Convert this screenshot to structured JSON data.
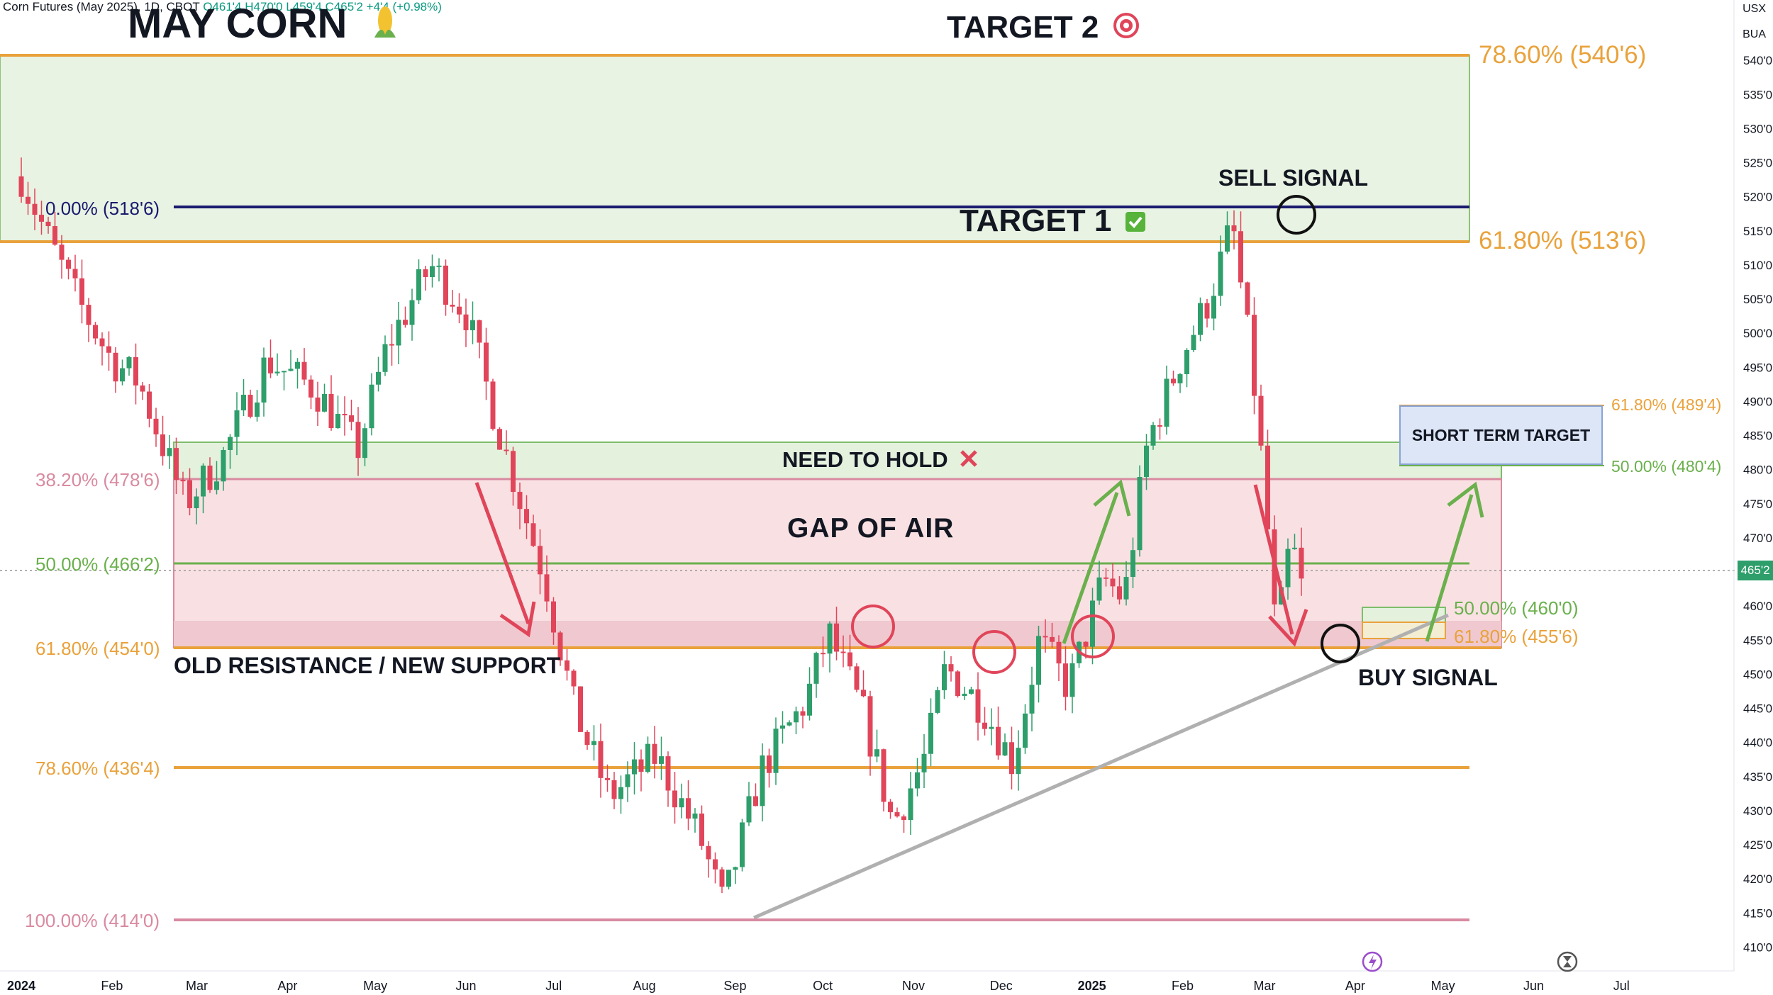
{
  "header": {
    "symbol_text": "Corn Futures (May 2025), 1D, CBOT",
    "open": "O461'4",
    "high": "H470'0",
    "low": "L459'4",
    "close": "C465'2",
    "change": "+4'4 (+0.98%)"
  },
  "title": "MAY CORN",
  "corner": {
    "currency": "USX",
    "unit": "BUA"
  },
  "labels": {
    "target2": "TARGET 2",
    "target1": "TARGET 1",
    "sell_signal": "SELL SIGNAL",
    "buy_signal": "BUY SIGNAL",
    "need_to_hold": "NEED TO HOLD",
    "gap_of_air": "GAP OF AIR",
    "old_resistance": "OLD RESISTANCE / NEW SUPPORT",
    "short_term_target": "SHORT TERM TARGET"
  },
  "fib_levels": {
    "f786_top": "78.60% (540'6)",
    "f0": "0.00% (518'6)",
    "f618_top": "61.80% (513'6)",
    "f618_right": "61.80% (489'4)",
    "f50_right": "50.00% (480'4)",
    "f382": "38.20% (478'6)",
    "f50": "50.00% (466'2)",
    "f618": "61.80% (454'0)",
    "f50_small": "50.00% (460'0)",
    "f618_small": "61.80% (455'6)",
    "f786": "78.60% (436'4)",
    "f100": "100.00% (414'0)"
  },
  "current_price_label": "465'2",
  "colors": {
    "up": "#2e9e6b",
    "down": "#e0455a",
    "fib_orange": "#e9a23b",
    "fib_green": "#6ab04c",
    "fib_pink": "#d98aa0",
    "navy": "#1a1a6e",
    "trendline": "#b0b0b0"
  },
  "chart_data": {
    "type": "candlestick",
    "title": "MAY CORN",
    "y_axis": {
      "min": 410,
      "max": 545,
      "ticks": [
        "410'0",
        "415'0",
        "420'0",
        "425'0",
        "430'0",
        "435'0",
        "440'0",
        "445'0",
        "450'0",
        "455'0",
        "460'0",
        "465'0",
        "470'0",
        "475'0",
        "480'0",
        "485'0",
        "490'0",
        "495'0",
        "500'0",
        "505'0",
        "510'0",
        "515'0",
        "520'0",
        "525'0",
        "530'0",
        "535'0",
        "540'0"
      ]
    },
    "x_axis": {
      "ticks": [
        "2024",
        "Feb",
        "Mar",
        "Apr",
        "May",
        "Jun",
        "Jul",
        "Aug",
        "Sep",
        "Oct",
        "Nov",
        "Dec",
        "2025",
        "Feb",
        "Mar",
        "Apr",
        "May",
        "Jun",
        "Jul"
      ],
      "range": [
        "2024-01-01",
        "2025-07-31"
      ]
    },
    "price_path": [
      {
        "date": "2024-01-01",
        "price": 523
      },
      {
        "date": "2024-01-10",
        "price": 514
      },
      {
        "date": "2024-01-20",
        "price": 505
      },
      {
        "date": "2024-02-01",
        "price": 496
      },
      {
        "date": "2024-02-10",
        "price": 493
      },
      {
        "date": "2024-02-26",
        "price": 475
      },
      {
        "date": "2024-03-10",
        "price": 482
      },
      {
        "date": "2024-03-25",
        "price": 496
      },
      {
        "date": "2024-04-10",
        "price": 492
      },
      {
        "date": "2024-04-25",
        "price": 483
      },
      {
        "date": "2024-05-05",
        "price": 498
      },
      {
        "date": "2024-05-20",
        "price": 510
      },
      {
        "date": "2024-06-01",
        "price": 503
      },
      {
        "date": "2024-06-12",
        "price": 486
      },
      {
        "date": "2024-06-28",
        "price": 464
      },
      {
        "date": "2024-07-08",
        "price": 445
      },
      {
        "date": "2024-07-20",
        "price": 432
      },
      {
        "date": "2024-08-05",
        "price": 438
      },
      {
        "date": "2024-08-20",
        "price": 426
      },
      {
        "date": "2024-08-28",
        "price": 416
      },
      {
        "date": "2024-09-10",
        "price": 436
      },
      {
        "date": "2024-09-25",
        "price": 446
      },
      {
        "date": "2024-10-03",
        "price": 456
      },
      {
        "date": "2024-10-15",
        "price": 444
      },
      {
        "date": "2024-10-25",
        "price": 428
      },
      {
        "date": "2024-11-05",
        "price": 438
      },
      {
        "date": "2024-11-12",
        "price": 451
      },
      {
        "date": "2024-11-25",
        "price": 445
      },
      {
        "date": "2024-12-05",
        "price": 437
      },
      {
        "date": "2024-12-14",
        "price": 455
      },
      {
        "date": "2024-12-24",
        "price": 448
      },
      {
        "date": "2025-01-05",
        "price": 464
      },
      {
        "date": "2025-01-12",
        "price": 461
      },
      {
        "date": "2025-01-20",
        "price": 484
      },
      {
        "date": "2025-02-01",
        "price": 497
      },
      {
        "date": "2025-02-10",
        "price": 505
      },
      {
        "date": "2025-02-18",
        "price": 516
      },
      {
        "date": "2025-02-25",
        "price": 494
      },
      {
        "date": "2025-03-01",
        "price": 477
      },
      {
        "date": "2025-03-05",
        "price": 455
      },
      {
        "date": "2025-03-10",
        "price": 470
      },
      {
        "date": "2025-03-14",
        "price": 462
      }
    ],
    "hlines": [
      {
        "label": "78.60% (540'6)",
        "value": 540.75,
        "color": "#e9a23b"
      },
      {
        "label": "0.00% (518'6)",
        "value": 518.75,
        "color": "#1a1a6e"
      },
      {
        "label": "61.80% (513'6)",
        "value": 513.75,
        "color": "#e9a23b"
      },
      {
        "label": "38.20% (478'6)",
        "value": 478.75,
        "color": "#d98aa0"
      },
      {
        "label": "50.00% (466'2)",
        "value": 466.25,
        "color": "#6ab04c"
      },
      {
        "label": "61.80% (454'0)",
        "value": 454.0,
        "color": "#e9a23b"
      },
      {
        "label": "78.60% (436'4)",
        "value": 436.5,
        "color": "#e9a23b"
      },
      {
        "label": "100.00% (414'0)",
        "value": 414.0,
        "color": "#d98aa0"
      }
    ],
    "current_price": 465.25,
    "annotations": [
      "TARGET 2",
      "TARGET 1",
      "SELL SIGNAL",
      "BUY SIGNAL",
      "NEED TO HOLD",
      "GAP OF AIR",
      "OLD RESISTANCE / NEW SUPPORT",
      "SHORT TERM TARGET"
    ]
  }
}
